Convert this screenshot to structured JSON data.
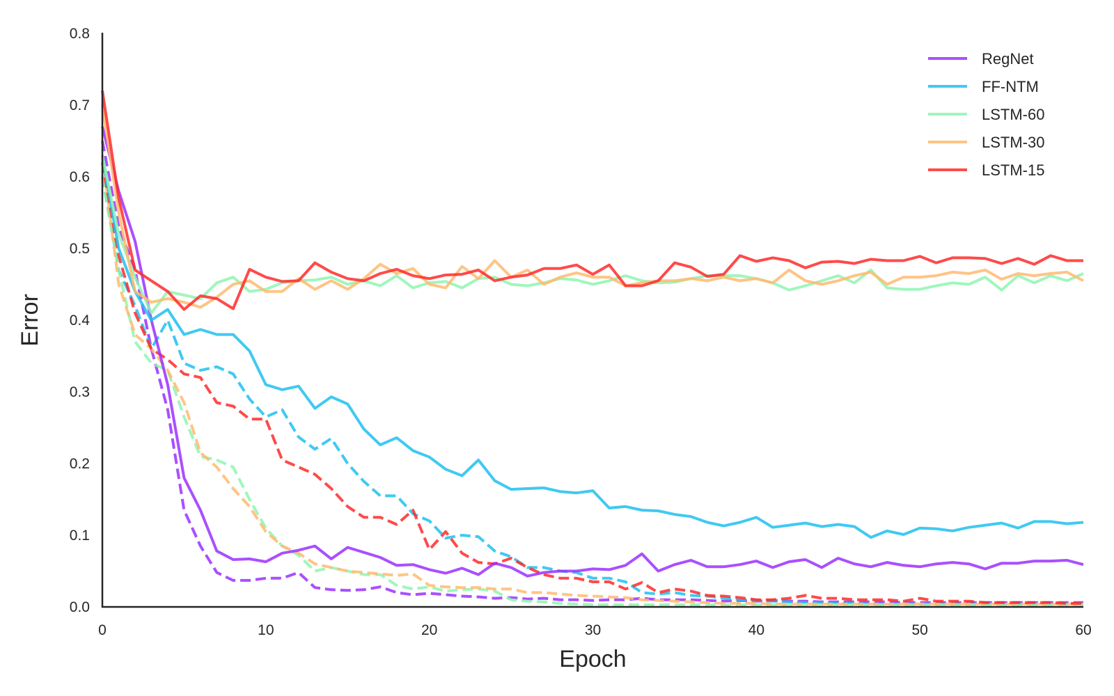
{
  "chart_data": {
    "type": "line",
    "xlabel": "Epoch",
    "ylabel": "Error",
    "xlim": [
      0,
      60
    ],
    "ylim": [
      0,
      0.8
    ],
    "xticks": [
      "0",
      "10",
      "20",
      "30",
      "40",
      "50",
      "60"
    ],
    "yticks": [
      "0.0",
      "0.1",
      "0.2",
      "0.3",
      "0.4",
      "0.5",
      "0.6",
      "0.7",
      "0.8"
    ],
    "grid": false,
    "legend_position": "top-right",
    "series": [
      {
        "name": "RegNet",
        "color": "#9b30ff",
        "linestyle": "solid",
        "values": [
          0.67,
          0.58,
          0.51,
          0.4,
          0.31,
          0.18,
          0.135,
          0.078,
          0.066,
          0.067,
          0.063,
          0.075,
          0.079,
          0.085,
          0.067,
          0.083,
          0.076,
          0.069,
          0.058,
          0.059,
          0.052,
          0.047,
          0.054,
          0.045,
          0.061,
          0.055,
          0.043,
          0.048,
          0.05,
          0.05,
          0.053,
          0.052,
          0.058,
          0.074,
          0.05,
          0.059,
          0.065,
          0.056,
          0.056,
          0.059,
          0.064,
          0.055,
          0.063,
          0.066,
          0.055,
          0.068,
          0.06,
          0.056,
          0.062,
          0.058,
          0.056,
          0.06,
          0.062,
          0.06,
          0.053,
          0.061,
          0.061,
          0.064,
          0.064,
          0.065,
          0.059
        ]
      },
      {
        "name": "FF-NTM",
        "color": "#1ebff0",
        "linestyle": "solid",
        "values": [
          0.63,
          0.5,
          0.44,
          0.4,
          0.415,
          0.38,
          0.387,
          0.38,
          0.38,
          0.357,
          0.31,
          0.303,
          0.308,
          0.277,
          0.293,
          0.283,
          0.248,
          0.226,
          0.236,
          0.218,
          0.209,
          0.192,
          0.183,
          0.205,
          0.176,
          0.164,
          0.165,
          0.166,
          0.161,
          0.159,
          0.162,
          0.138,
          0.14,
          0.135,
          0.134,
          0.129,
          0.126,
          0.118,
          0.113,
          0.118,
          0.125,
          0.111,
          0.114,
          0.117,
          0.112,
          0.115,
          0.112,
          0.097,
          0.106,
          0.101,
          0.11,
          0.109,
          0.106,
          0.111,
          0.114,
          0.117,
          0.11,
          0.119,
          0.119,
          0.116,
          0.118
        ]
      },
      {
        "name": "LSTM-60",
        "color": "#8ff5b0",
        "linestyle": "solid",
        "values": [
          0.63,
          0.52,
          0.46,
          0.41,
          0.44,
          0.435,
          0.43,
          0.452,
          0.46,
          0.44,
          0.443,
          0.452,
          0.455,
          0.456,
          0.46,
          0.45,
          0.455,
          0.448,
          0.462,
          0.445,
          0.452,
          0.454,
          0.445,
          0.458,
          0.46,
          0.45,
          0.448,
          0.452,
          0.458,
          0.456,
          0.45,
          0.455,
          0.462,
          0.455,
          0.452,
          0.453,
          0.458,
          0.462,
          0.462,
          0.462,
          0.458,
          0.452,
          0.442,
          0.448,
          0.455,
          0.462,
          0.452,
          0.47,
          0.445,
          0.443,
          0.443,
          0.448,
          0.452,
          0.45,
          0.46,
          0.442,
          0.462,
          0.452,
          0.462,
          0.455,
          0.465
        ]
      },
      {
        "name": "LSTM-30",
        "color": "#ffba6e",
        "linestyle": "solid",
        "values": [
          0.7,
          0.55,
          0.44,
          0.425,
          0.43,
          0.425,
          0.418,
          0.432,
          0.45,
          0.455,
          0.44,
          0.44,
          0.458,
          0.443,
          0.455,
          0.443,
          0.458,
          0.478,
          0.465,
          0.472,
          0.45,
          0.445,
          0.475,
          0.458,
          0.483,
          0.46,
          0.47,
          0.45,
          0.46,
          0.466,
          0.46,
          0.46,
          0.448,
          0.452,
          0.455,
          0.455,
          0.458,
          0.455,
          0.46,
          0.455,
          0.458,
          0.452,
          0.47,
          0.455,
          0.45,
          0.455,
          0.462,
          0.467,
          0.45,
          0.46,
          0.46,
          0.462,
          0.467,
          0.465,
          0.47,
          0.457,
          0.465,
          0.462,
          0.465,
          0.467,
          0.455
        ]
      },
      {
        "name": "LSTM-15",
        "color": "#ff2a2a",
        "linestyle": "solid",
        "values": [
          0.72,
          0.57,
          0.47,
          0.455,
          0.44,
          0.415,
          0.434,
          0.43,
          0.416,
          0.471,
          0.46,
          0.454,
          0.455,
          0.48,
          0.467,
          0.458,
          0.455,
          0.465,
          0.471,
          0.462,
          0.458,
          0.463,
          0.464,
          0.47,
          0.455,
          0.46,
          0.463,
          0.472,
          0.472,
          0.477,
          0.464,
          0.477,
          0.448,
          0.448,
          0.455,
          0.48,
          0.474,
          0.461,
          0.464,
          0.49,
          0.482,
          0.487,
          0.483,
          0.473,
          0.481,
          0.482,
          0.479,
          0.485,
          0.483,
          0.483,
          0.489,
          0.48,
          0.487,
          0.487,
          0.486,
          0.479,
          0.486,
          0.478,
          0.49,
          0.483,
          0.483
        ]
      },
      {
        "color": "#9b30ff",
        "linestyle": "dashed",
        "values": [
          0.65,
          0.53,
          0.47,
          0.36,
          0.275,
          0.135,
          0.085,
          0.048,
          0.037,
          0.037,
          0.04,
          0.04,
          0.048,
          0.027,
          0.024,
          0.023,
          0.024,
          0.028,
          0.02,
          0.017,
          0.019,
          0.017,
          0.015,
          0.014,
          0.012,
          0.013,
          0.011,
          0.012,
          0.01,
          0.01,
          0.009,
          0.01,
          0.01,
          0.012,
          0.01,
          0.01,
          0.01,
          0.009,
          0.008,
          0.009,
          0.008,
          0.009,
          0.008,
          0.008,
          0.007,
          0.007,
          0.007,
          0.007,
          0.007,
          0.006,
          0.006,
          0.006,
          0.006,
          0.006,
          0.006,
          0.006,
          0.006,
          0.006,
          0.006,
          0.006,
          0.006
        ]
      },
      {
        "color": "#1ebff0",
        "linestyle": "dashed",
        "values": [
          0.6,
          0.47,
          0.42,
          0.36,
          0.4,
          0.34,
          0.33,
          0.335,
          0.325,
          0.29,
          0.265,
          0.275,
          0.237,
          0.22,
          0.235,
          0.2,
          0.175,
          0.155,
          0.155,
          0.13,
          0.12,
          0.096,
          0.1,
          0.098,
          0.078,
          0.07,
          0.055,
          0.055,
          0.05,
          0.048,
          0.04,
          0.04,
          0.035,
          0.02,
          0.018,
          0.02,
          0.016,
          0.015,
          0.012,
          0.01,
          0.009,
          0.008,
          0.007,
          0.006,
          0.006,
          0.005,
          0.005,
          0.004,
          0.004,
          0.004,
          0.004,
          0.004,
          0.004,
          0.004,
          0.004,
          0.004,
          0.004,
          0.004,
          0.004,
          0.004,
          0.004
        ]
      },
      {
        "color": "#8ff5b0",
        "linestyle": "dashed",
        "values": [
          0.6,
          0.47,
          0.37,
          0.34,
          0.33,
          0.265,
          0.21,
          0.205,
          0.195,
          0.15,
          0.11,
          0.085,
          0.072,
          0.05,
          0.055,
          0.05,
          0.045,
          0.045,
          0.03,
          0.025,
          0.028,
          0.022,
          0.024,
          0.025,
          0.022,
          0.01,
          0.008,
          0.007,
          0.005,
          0.004,
          0.003,
          0.003,
          0.003,
          0.003,
          0.003,
          0.003,
          0.003,
          0.003,
          0.003,
          0.003,
          0.003,
          0.003,
          0.003,
          0.003,
          0.003,
          0.003,
          0.003,
          0.003,
          0.003,
          0.003,
          0.003,
          0.003,
          0.003,
          0.003,
          0.003,
          0.003,
          0.003,
          0.003,
          0.003,
          0.003,
          0.003
        ]
      },
      {
        "color": "#ffba6e",
        "linestyle": "dashed",
        "values": [
          0.63,
          0.45,
          0.38,
          0.36,
          0.33,
          0.285,
          0.215,
          0.195,
          0.165,
          0.14,
          0.105,
          0.085,
          0.075,
          0.06,
          0.055,
          0.05,
          0.048,
          0.046,
          0.044,
          0.046,
          0.03,
          0.028,
          0.027,
          0.027,
          0.025,
          0.025,
          0.02,
          0.02,
          0.018,
          0.016,
          0.015,
          0.014,
          0.013,
          0.01,
          0.009,
          0.008,
          0.007,
          0.006,
          0.005,
          0.005,
          0.005,
          0.004,
          0.004,
          0.004,
          0.004,
          0.004,
          0.004,
          0.004,
          0.004,
          0.004,
          0.004,
          0.004,
          0.004,
          0.004,
          0.004,
          0.004,
          0.004,
          0.004,
          0.004,
          0.004,
          0.004
        ]
      },
      {
        "color": "#ff2a2a",
        "linestyle": "dashed",
        "values": [
          0.62,
          0.49,
          0.41,
          0.36,
          0.345,
          0.325,
          0.32,
          0.285,
          0.28,
          0.262,
          0.262,
          0.205,
          0.195,
          0.185,
          0.165,
          0.14,
          0.125,
          0.125,
          0.115,
          0.135,
          0.08,
          0.105,
          0.075,
          0.062,
          0.06,
          0.068,
          0.055,
          0.045,
          0.04,
          0.04,
          0.035,
          0.035,
          0.025,
          0.034,
          0.02,
          0.025,
          0.022,
          0.016,
          0.015,
          0.013,
          0.01,
          0.01,
          0.012,
          0.016,
          0.012,
          0.012,
          0.01,
          0.01,
          0.01,
          0.008,
          0.012,
          0.008,
          0.008,
          0.008,
          0.006,
          0.006,
          0.006,
          0.006,
          0.006,
          0.005,
          0.005
        ]
      }
    ]
  }
}
